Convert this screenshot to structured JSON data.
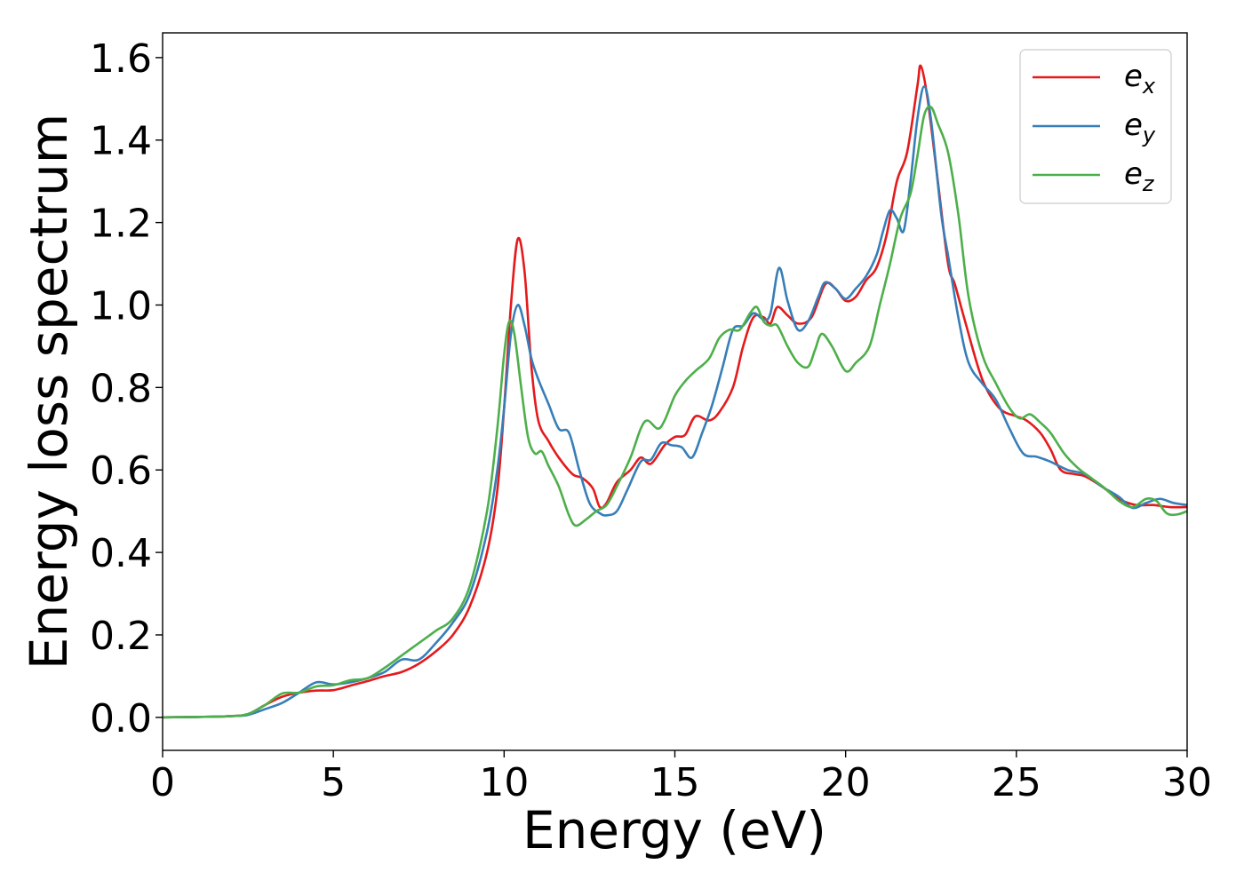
{
  "chart_data": {
    "type": "line",
    "title": "",
    "xlabel": "Energy (eV)",
    "ylabel": "Energy loss spectrum",
    "xlim": [
      0,
      30
    ],
    "ylim": [
      -0.08,
      1.66
    ],
    "xticks": [
      0,
      5,
      10,
      15,
      20,
      25,
      30
    ],
    "xtick_labels": [
      "0",
      "5",
      "10",
      "15",
      "20",
      "25",
      "30"
    ],
    "yticks": [
      0.0,
      0.2,
      0.4,
      0.6,
      0.8,
      1.0,
      1.2,
      1.4,
      1.6
    ],
    "ytick_labels": [
      "0.0",
      "0.2",
      "0.4",
      "0.6",
      "0.8",
      "1.0",
      "1.2",
      "1.4",
      "1.6"
    ],
    "grid": false,
    "legend_position": "top-right",
    "series": [
      {
        "name": "e_x",
        "label_base": "e",
        "label_sub": "x",
        "color": "#e41a1c",
        "points": [
          [
            0,
            0.0
          ],
          [
            1,
            0.001
          ],
          [
            2,
            0.003
          ],
          [
            2.5,
            0.008
          ],
          [
            3,
            0.03
          ],
          [
            3.5,
            0.05
          ],
          [
            4,
            0.06
          ],
          [
            4.5,
            0.065
          ],
          [
            5,
            0.066
          ],
          [
            5.5,
            0.077
          ],
          [
            6,
            0.088
          ],
          [
            6.5,
            0.1
          ],
          [
            7,
            0.11
          ],
          [
            7.5,
            0.13
          ],
          [
            8,
            0.16
          ],
          [
            8.5,
            0.2
          ],
          [
            9,
            0.27
          ],
          [
            9.5,
            0.4
          ],
          [
            9.8,
            0.55
          ],
          [
            10,
            0.75
          ],
          [
            10.2,
            1.0
          ],
          [
            10.4,
            1.16
          ],
          [
            10.6,
            1.08
          ],
          [
            10.8,
            0.85
          ],
          [
            11,
            0.72
          ],
          [
            11.3,
            0.67
          ],
          [
            11.6,
            0.63
          ],
          [
            12,
            0.59
          ],
          [
            12.3,
            0.58
          ],
          [
            12.6,
            0.555
          ],
          [
            12.8,
            0.51
          ],
          [
            13,
            0.52
          ],
          [
            13.3,
            0.57
          ],
          [
            13.7,
            0.6
          ],
          [
            14,
            0.63
          ],
          [
            14.3,
            0.615
          ],
          [
            14.7,
            0.66
          ],
          [
            15,
            0.68
          ],
          [
            15.3,
            0.685
          ],
          [
            15.6,
            0.73
          ],
          [
            16,
            0.72
          ],
          [
            16.3,
            0.74
          ],
          [
            16.7,
            0.8
          ],
          [
            17,
            0.9
          ],
          [
            17.3,
            0.97
          ],
          [
            17.6,
            0.97
          ],
          [
            17.8,
            0.955
          ],
          [
            18,
            0.995
          ],
          [
            18.3,
            0.975
          ],
          [
            18.6,
            0.955
          ],
          [
            19,
            0.97
          ],
          [
            19.4,
            1.05
          ],
          [
            19.7,
            1.04
          ],
          [
            20,
            1.01
          ],
          [
            20.3,
            1.02
          ],
          [
            20.6,
            1.06
          ],
          [
            20.9,
            1.09
          ],
          [
            21.2,
            1.17
          ],
          [
            21.5,
            1.3
          ],
          [
            21.8,
            1.37
          ],
          [
            22.1,
            1.53
          ],
          [
            22.2,
            1.58
          ],
          [
            22.4,
            1.5
          ],
          [
            22.7,
            1.3
          ],
          [
            23,
            1.1
          ],
          [
            23.2,
            1.05
          ],
          [
            23.5,
            0.96
          ],
          [
            24,
            0.82
          ],
          [
            24.5,
            0.75
          ],
          [
            25,
            0.73
          ],
          [
            25.3,
            0.72
          ],
          [
            25.7,
            0.69
          ],
          [
            26,
            0.65
          ],
          [
            26.3,
            0.6
          ],
          [
            26.7,
            0.59
          ],
          [
            27,
            0.585
          ],
          [
            27.5,
            0.56
          ],
          [
            28,
            0.53
          ],
          [
            28.5,
            0.515
          ],
          [
            29,
            0.515
          ],
          [
            29.5,
            0.51
          ],
          [
            30,
            0.51
          ]
        ]
      },
      {
        "name": "e_y",
        "label_base": "e",
        "label_sub": "y",
        "color": "#377eb8",
        "points": [
          [
            0,
            0.0
          ],
          [
            1,
            0.001
          ],
          [
            2,
            0.003
          ],
          [
            2.5,
            0.006
          ],
          [
            3,
            0.02
          ],
          [
            3.5,
            0.035
          ],
          [
            4,
            0.06
          ],
          [
            4.5,
            0.085
          ],
          [
            5,
            0.08
          ],
          [
            5.5,
            0.085
          ],
          [
            6,
            0.095
          ],
          [
            6.5,
            0.11
          ],
          [
            7,
            0.14
          ],
          [
            7.5,
            0.14
          ],
          [
            8,
            0.18
          ],
          [
            8.5,
            0.23
          ],
          [
            9,
            0.3
          ],
          [
            9.5,
            0.45
          ],
          [
            9.8,
            0.6
          ],
          [
            10,
            0.75
          ],
          [
            10.2,
            0.93
          ],
          [
            10.4,
            1.0
          ],
          [
            10.6,
            0.95
          ],
          [
            10.8,
            0.87
          ],
          [
            11,
            0.82
          ],
          [
            11.3,
            0.76
          ],
          [
            11.6,
            0.7
          ],
          [
            11.9,
            0.69
          ],
          [
            12.2,
            0.6
          ],
          [
            12.5,
            0.52
          ],
          [
            12.8,
            0.495
          ],
          [
            13,
            0.49
          ],
          [
            13.3,
            0.5
          ],
          [
            13.6,
            0.55
          ],
          [
            14,
            0.62
          ],
          [
            14.3,
            0.625
          ],
          [
            14.6,
            0.665
          ],
          [
            14.9,
            0.66
          ],
          [
            15.2,
            0.655
          ],
          [
            15.5,
            0.63
          ],
          [
            15.8,
            0.69
          ],
          [
            16.1,
            0.76
          ],
          [
            16.4,
            0.85
          ],
          [
            16.7,
            0.94
          ],
          [
            17,
            0.95
          ],
          [
            17.3,
            0.98
          ],
          [
            17.6,
            0.965
          ],
          [
            17.8,
            0.98
          ],
          [
            18.05,
            1.09
          ],
          [
            18.3,
            1.01
          ],
          [
            18.6,
            0.94
          ],
          [
            18.9,
            0.96
          ],
          [
            19.2,
            1.02
          ],
          [
            19.4,
            1.055
          ],
          [
            19.7,
            1.04
          ],
          [
            20,
            1.015
          ],
          [
            20.3,
            1.04
          ],
          [
            20.6,
            1.07
          ],
          [
            20.9,
            1.12
          ],
          [
            21.1,
            1.18
          ],
          [
            21.3,
            1.23
          ],
          [
            21.5,
            1.21
          ],
          [
            21.7,
            1.18
          ],
          [
            21.9,
            1.3
          ],
          [
            22.1,
            1.45
          ],
          [
            22.3,
            1.53
          ],
          [
            22.5,
            1.45
          ],
          [
            22.8,
            1.22
          ],
          [
            23,
            1.12
          ],
          [
            23.3,
            0.97
          ],
          [
            23.6,
            0.86
          ],
          [
            24,
            0.81
          ],
          [
            24.4,
            0.77
          ],
          [
            24.8,
            0.7
          ],
          [
            25.2,
            0.64
          ],
          [
            25.6,
            0.632
          ],
          [
            26,
            0.62
          ],
          [
            26.5,
            0.6
          ],
          [
            27,
            0.59
          ],
          [
            27.5,
            0.56
          ],
          [
            28,
            0.535
          ],
          [
            28.4,
            0.508
          ],
          [
            28.8,
            0.52
          ],
          [
            29.2,
            0.53
          ],
          [
            29.6,
            0.52
          ],
          [
            30,
            0.515
          ]
        ]
      },
      {
        "name": "e_z",
        "label_base": "e",
        "label_sub": "z",
        "color": "#4daf4a",
        "points": [
          [
            0,
            0.0
          ],
          [
            1,
            0.001
          ],
          [
            2,
            0.003
          ],
          [
            2.5,
            0.008
          ],
          [
            3,
            0.03
          ],
          [
            3.5,
            0.058
          ],
          [
            4,
            0.06
          ],
          [
            4.5,
            0.075
          ],
          [
            5,
            0.078
          ],
          [
            5.5,
            0.09
          ],
          [
            6,
            0.095
          ],
          [
            6.5,
            0.12
          ],
          [
            7,
            0.15
          ],
          [
            7.5,
            0.18
          ],
          [
            8,
            0.21
          ],
          [
            8.5,
            0.24
          ],
          [
            9,
            0.32
          ],
          [
            9.5,
            0.5
          ],
          [
            9.8,
            0.7
          ],
          [
            10,
            0.88
          ],
          [
            10.15,
            0.96
          ],
          [
            10.3,
            0.93
          ],
          [
            10.5,
            0.8
          ],
          [
            10.7,
            0.68
          ],
          [
            10.9,
            0.64
          ],
          [
            11.1,
            0.645
          ],
          [
            11.3,
            0.61
          ],
          [
            11.6,
            0.56
          ],
          [
            11.9,
            0.49
          ],
          [
            12.1,
            0.465
          ],
          [
            12.4,
            0.48
          ],
          [
            12.7,
            0.5
          ],
          [
            13,
            0.515
          ],
          [
            13.3,
            0.56
          ],
          [
            13.7,
            0.63
          ],
          [
            14,
            0.7
          ],
          [
            14.2,
            0.72
          ],
          [
            14.5,
            0.7
          ],
          [
            14.7,
            0.72
          ],
          [
            15,
            0.78
          ],
          [
            15.3,
            0.815
          ],
          [
            15.6,
            0.84
          ],
          [
            16,
            0.87
          ],
          [
            16.3,
            0.92
          ],
          [
            16.6,
            0.94
          ],
          [
            16.9,
            0.94
          ],
          [
            17.2,
            0.98
          ],
          [
            17.4,
            0.995
          ],
          [
            17.6,
            0.96
          ],
          [
            17.8,
            0.95
          ],
          [
            18,
            0.95
          ],
          [
            18.3,
            0.9
          ],
          [
            18.6,
            0.86
          ],
          [
            18.9,
            0.85
          ],
          [
            19.1,
            0.89
          ],
          [
            19.3,
            0.93
          ],
          [
            19.6,
            0.9
          ],
          [
            20,
            0.84
          ],
          [
            20.3,
            0.86
          ],
          [
            20.7,
            0.9
          ],
          [
            21,
            1.0
          ],
          [
            21.3,
            1.1
          ],
          [
            21.6,
            1.21
          ],
          [
            21.9,
            1.27
          ],
          [
            22.1,
            1.36
          ],
          [
            22.3,
            1.46
          ],
          [
            22.5,
            1.48
          ],
          [
            22.7,
            1.44
          ],
          [
            23,
            1.37
          ],
          [
            23.3,
            1.22
          ],
          [
            23.6,
            1.02
          ],
          [
            24,
            0.88
          ],
          [
            24.4,
            0.81
          ],
          [
            24.8,
            0.75
          ],
          [
            25.1,
            0.725
          ],
          [
            25.4,
            0.735
          ],
          [
            25.7,
            0.715
          ],
          [
            26,
            0.69
          ],
          [
            26.4,
            0.64
          ],
          [
            26.8,
            0.605
          ],
          [
            27.2,
            0.58
          ],
          [
            27.6,
            0.555
          ],
          [
            28,
            0.525
          ],
          [
            28.4,
            0.51
          ],
          [
            28.8,
            0.53
          ],
          [
            29.1,
            0.525
          ],
          [
            29.4,
            0.495
          ],
          [
            29.7,
            0.492
          ],
          [
            30,
            0.5
          ]
        ]
      }
    ]
  }
}
